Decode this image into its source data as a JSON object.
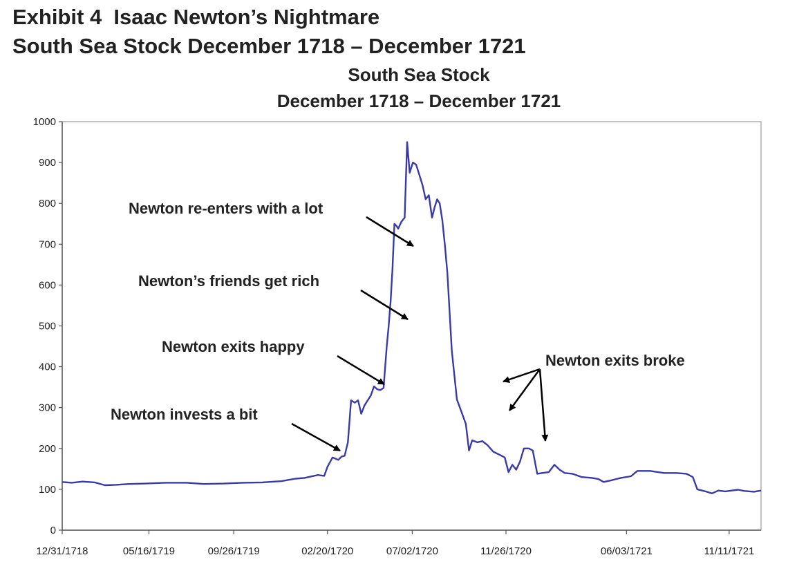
{
  "exhibit": {
    "title_line1": "Exhibit 4  Isaac Newton’s Nightmare",
    "title_line2": "South Sea Stock December 1718 – December 1721"
  },
  "chart_data": {
    "type": "line",
    "title_line1": "South Sea Stock",
    "title_line2": "December 1718 – December 1721",
    "xlabel": "",
    "ylabel": "",
    "ylim": [
      0,
      1000
    ],
    "yticks": [
      0,
      100,
      200,
      300,
      400,
      500,
      600,
      700,
      800,
      900,
      1000
    ],
    "xlim": [
      "1718-12-31",
      "1721-12-31"
    ],
    "xticks": [
      {
        "date": "1718-12-31",
        "label": "12/31/1718"
      },
      {
        "date": "1719-05-16",
        "label": "05/16/1719"
      },
      {
        "date": "1719-09-26",
        "label": "09/26/1719"
      },
      {
        "date": "1720-02-20",
        "label": "02/20/1720"
      },
      {
        "date": "1720-07-02",
        "label": "07/02/1720"
      },
      {
        "date": "1720-11-26",
        "label": "11/26/1720"
      },
      {
        "date": "1721-06-03",
        "label": "06/03/1721"
      },
      {
        "date": "1721-11-11",
        "label": "11/11/1721"
      }
    ],
    "grid": false,
    "line_color": "#3a3aa6",
    "series": [
      {
        "points": [
          [
            "1718-12-31",
            118
          ],
          [
            "1719-01-15",
            116
          ],
          [
            "1719-02-01",
            119
          ],
          [
            "1719-02-20",
            117
          ],
          [
            "1719-03-08",
            110
          ],
          [
            "1719-03-25",
            111
          ],
          [
            "1719-04-15",
            113
          ],
          [
            "1719-05-10",
            114
          ],
          [
            "1719-06-10",
            116
          ],
          [
            "1719-07-15",
            116
          ],
          [
            "1719-08-10",
            113
          ],
          [
            "1719-09-10",
            114
          ],
          [
            "1719-10-10",
            116
          ],
          [
            "1719-11-10",
            117
          ],
          [
            "1719-12-10",
            120
          ],
          [
            "1720-01-01",
            126
          ],
          [
            "1720-01-15",
            128
          ],
          [
            "1720-02-05",
            135
          ],
          [
            "1720-02-15",
            133
          ],
          [
            "1720-02-20",
            155
          ],
          [
            "1720-02-28",
            178
          ],
          [
            "1720-03-08",
            172
          ],
          [
            "1720-03-13",
            180
          ],
          [
            "1720-03-18",
            182
          ],
          [
            "1720-03-23",
            215
          ],
          [
            "1720-03-28",
            318
          ],
          [
            "1720-04-03",
            312
          ],
          [
            "1720-04-08",
            318
          ],
          [
            "1720-04-13",
            285
          ],
          [
            "1720-04-18",
            305
          ],
          [
            "1720-04-28",
            330
          ],
          [
            "1720-05-03",
            352
          ],
          [
            "1720-05-08",
            345
          ],
          [
            "1720-05-13",
            343
          ],
          [
            "1720-05-18",
            348
          ],
          [
            "1720-05-23",
            450
          ],
          [
            "1720-05-26",
            500
          ],
          [
            "1720-05-29",
            560
          ],
          [
            "1720-06-01",
            640
          ],
          [
            "1720-06-04",
            750
          ],
          [
            "1720-06-07",
            745
          ],
          [
            "1720-06-10",
            738
          ],
          [
            "1720-06-15",
            755
          ],
          [
            "1720-06-20",
            765
          ],
          [
            "1720-06-24",
            950
          ],
          [
            "1720-06-28",
            875
          ],
          [
            "1720-07-03",
            900
          ],
          [
            "1720-07-08",
            895
          ],
          [
            "1720-07-13",
            870
          ],
          [
            "1720-07-18",
            845
          ],
          [
            "1720-07-23",
            810
          ],
          [
            "1720-07-28",
            820
          ],
          [
            "1720-08-02",
            765
          ],
          [
            "1720-08-06",
            790
          ],
          [
            "1720-08-10",
            810
          ],
          [
            "1720-08-14",
            800
          ],
          [
            "1720-08-18",
            760
          ],
          [
            "1720-08-22",
            700
          ],
          [
            "1720-08-26",
            630
          ],
          [
            "1720-09-02",
            440
          ],
          [
            "1720-09-10",
            320
          ],
          [
            "1720-09-17",
            290
          ],
          [
            "1720-09-24",
            260
          ],
          [
            "1720-09-29",
            195
          ],
          [
            "1720-10-04",
            220
          ],
          [
            "1720-10-12",
            215
          ],
          [
            "1720-10-20",
            218
          ],
          [
            "1720-10-28",
            208
          ],
          [
            "1720-11-06",
            192
          ],
          [
            "1720-11-14",
            186
          ],
          [
            "1720-11-24",
            178
          ],
          [
            "1720-11-30",
            142
          ],
          [
            "1720-12-06",
            160
          ],
          [
            "1720-12-12",
            148
          ],
          [
            "1720-12-18",
            168
          ],
          [
            "1720-12-24",
            200
          ],
          [
            "1721-01-01",
            200
          ],
          [
            "1721-01-07",
            195
          ],
          [
            "1721-01-14",
            138
          ],
          [
            "1721-01-22",
            140
          ],
          [
            "1721-02-01",
            142
          ],
          [
            "1721-02-10",
            160
          ],
          [
            "1721-02-18",
            148
          ],
          [
            "1721-02-26",
            140
          ],
          [
            "1721-03-10",
            138
          ],
          [
            "1721-03-25",
            130
          ],
          [
            "1721-04-10",
            128
          ],
          [
            "1721-04-20",
            125
          ],
          [
            "1721-04-28",
            118
          ],
          [
            "1721-05-10",
            122
          ],
          [
            "1721-05-25",
            128
          ],
          [
            "1721-06-10",
            132
          ],
          [
            "1721-06-20",
            145
          ],
          [
            "1721-07-10",
            145
          ],
          [
            "1721-08-01",
            140
          ],
          [
            "1721-08-20",
            140
          ],
          [
            "1721-09-05",
            138
          ],
          [
            "1721-09-15",
            130
          ],
          [
            "1721-09-22",
            100
          ],
          [
            "1721-10-05",
            95
          ],
          [
            "1721-10-15",
            90
          ],
          [
            "1721-10-25",
            97
          ],
          [
            "1721-11-05",
            95
          ],
          [
            "1721-11-15",
            97
          ],
          [
            "1721-11-25",
            99
          ],
          [
            "1721-12-05",
            96
          ],
          [
            "1721-12-20",
            94
          ],
          [
            "1721-12-31",
            97
          ]
        ]
      }
    ],
    "annotations": [
      {
        "text": "Newton invests a bit"
      },
      {
        "text": "Newton exits happy"
      },
      {
        "text": "Newton’s friends get rich"
      },
      {
        "text": "Newton re-enters with a lot"
      },
      {
        "text": "Newton exits broke"
      }
    ]
  }
}
